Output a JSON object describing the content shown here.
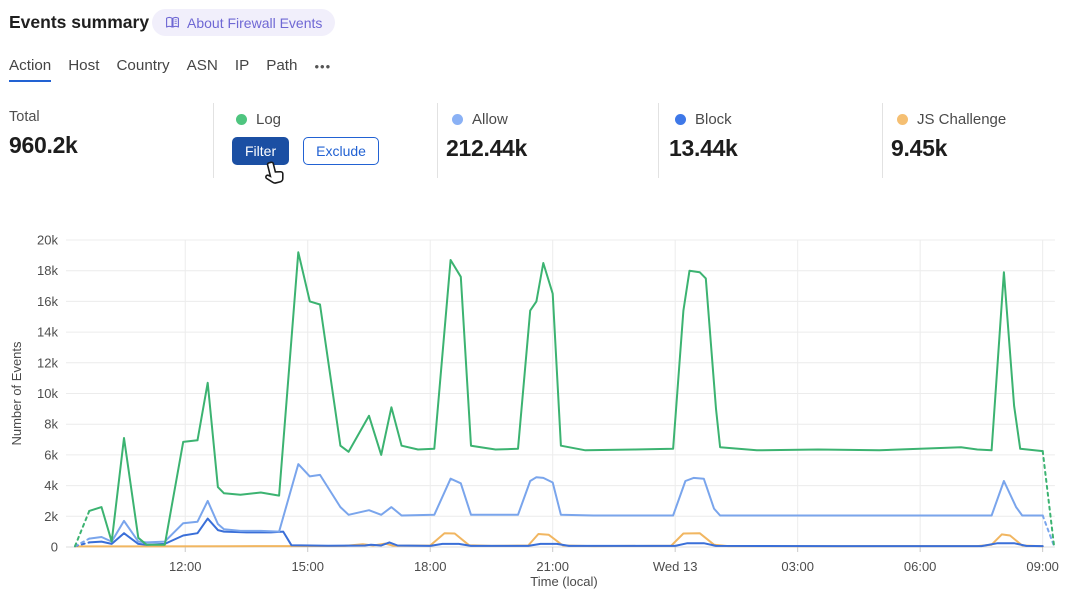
{
  "colors": {
    "accent_blue": "#2262d3",
    "filter_button_bg": "#1b4fa3",
    "badge_bg": "#f1effb",
    "badge_text": "#6f68d4"
  },
  "header": {
    "title": "Events summary",
    "about_label": "About Firewall Events"
  },
  "tabs": {
    "items": [
      {
        "label": "Action",
        "active": true
      },
      {
        "label": "Host",
        "active": false
      },
      {
        "label": "Country",
        "active": false
      },
      {
        "label": "ASN",
        "active": false
      },
      {
        "label": "IP",
        "active": false
      },
      {
        "label": "Path",
        "active": false
      }
    ],
    "more_label": "•••"
  },
  "stats": {
    "cards": [
      {
        "label": "Total",
        "value": "960.2k"
      },
      {
        "label": "Log",
        "dot_color": "#4ec57f",
        "buttons": {
          "filter": "Filter",
          "exclude": "Exclude"
        }
      },
      {
        "label": "Allow",
        "dot_color": "#8ab1f5",
        "value": "212.44k"
      },
      {
        "label": "Block",
        "dot_color": "#3e78e8",
        "value": "13.44k"
      },
      {
        "label": "JS Challenge",
        "dot_color": "#f5bf72",
        "value": "9.45k"
      }
    ]
  },
  "chart_data": {
    "type": "line",
    "xlabel": "Time (local)",
    "ylabel": "Number of Events",
    "x_unit": "hours since 00:00 of first day (24 = Wed 13 00:00)",
    "xlim": [
      9.3,
      33.3
    ],
    "ylim": [
      0,
      20000
    ],
    "grid": true,
    "x_ticks": [
      {
        "t": 12,
        "label": "12:00"
      },
      {
        "t": 15,
        "label": "15:00"
      },
      {
        "t": 18,
        "label": "18:00"
      },
      {
        "t": 21,
        "label": "21:00"
      },
      {
        "t": 24,
        "label": "Wed 13"
      },
      {
        "t": 27,
        "label": "03:00"
      },
      {
        "t": 30,
        "label": "06:00"
      },
      {
        "t": 33,
        "label": "09:00"
      }
    ],
    "y_ticks": [
      {
        "v": 0,
        "label": "0"
      },
      {
        "v": 2000,
        "label": "2k"
      },
      {
        "v": 4000,
        "label": "4k"
      },
      {
        "v": 6000,
        "label": "6k"
      },
      {
        "v": 8000,
        "label": "8k"
      },
      {
        "v": 10000,
        "label": "10k"
      },
      {
        "v": 12000,
        "label": "12k"
      },
      {
        "v": 14000,
        "label": "14k"
      },
      {
        "v": 16000,
        "label": "16k"
      },
      {
        "v": 18000,
        "label": "18k"
      },
      {
        "v": 20000,
        "label": "20k"
      }
    ],
    "series": [
      {
        "name": "Log",
        "color": "#3cb371",
        "dash_start": true,
        "dash_end": true,
        "points": [
          [
            9.3,
            50
          ],
          [
            9.65,
            2350
          ],
          [
            9.95,
            2600
          ],
          [
            10.2,
            350
          ],
          [
            10.5,
            7100
          ],
          [
            10.85,
            600
          ],
          [
            11.05,
            150
          ],
          [
            11.5,
            150
          ],
          [
            11.95,
            6850
          ],
          [
            12.3,
            6950
          ],
          [
            12.55,
            10700
          ],
          [
            12.8,
            3900
          ],
          [
            12.95,
            3500
          ],
          [
            13.35,
            3400
          ],
          [
            13.85,
            3550
          ],
          [
            14.3,
            3350
          ],
          [
            14.77,
            19200
          ],
          [
            15.05,
            16000
          ],
          [
            15.3,
            15800
          ],
          [
            15.8,
            6600
          ],
          [
            16.0,
            6200
          ],
          [
            16.5,
            8550
          ],
          [
            16.8,
            6000
          ],
          [
            17.05,
            9100
          ],
          [
            17.3,
            6600
          ],
          [
            17.7,
            6350
          ],
          [
            18.1,
            6400
          ],
          [
            18.5,
            18700
          ],
          [
            18.75,
            17600
          ],
          [
            19.0,
            6600
          ],
          [
            19.6,
            6350
          ],
          [
            20.15,
            6400
          ],
          [
            20.45,
            15400
          ],
          [
            20.6,
            16000
          ],
          [
            20.77,
            18500
          ],
          [
            21.0,
            16500
          ],
          [
            21.2,
            6600
          ],
          [
            21.8,
            6300
          ],
          [
            23.0,
            6350
          ],
          [
            23.95,
            6400
          ],
          [
            24.2,
            15400
          ],
          [
            24.35,
            18000
          ],
          [
            24.6,
            17900
          ],
          [
            24.75,
            17500
          ],
          [
            25.0,
            9000
          ],
          [
            25.1,
            6500
          ],
          [
            26.0,
            6300
          ],
          [
            27.5,
            6350
          ],
          [
            29.0,
            6300
          ],
          [
            30.5,
            6450
          ],
          [
            31.0,
            6500
          ],
          [
            31.4,
            6350
          ],
          [
            31.75,
            6300
          ],
          [
            32.05,
            17900
          ],
          [
            32.3,
            9200
          ],
          [
            32.45,
            6400
          ],
          [
            33.0,
            6250
          ],
          [
            33.28,
            50
          ]
        ]
      },
      {
        "name": "Allow",
        "color": "#7aa5ec",
        "dash_start": true,
        "dash_end": true,
        "points": [
          [
            9.3,
            50
          ],
          [
            9.65,
            550
          ],
          [
            9.95,
            650
          ],
          [
            10.2,
            350
          ],
          [
            10.5,
            1700
          ],
          [
            10.85,
            350
          ],
          [
            11.05,
            300
          ],
          [
            11.5,
            350
          ],
          [
            11.95,
            1550
          ],
          [
            12.3,
            1650
          ],
          [
            12.55,
            3000
          ],
          [
            12.8,
            1500
          ],
          [
            12.95,
            1150
          ],
          [
            13.35,
            1050
          ],
          [
            13.85,
            1050
          ],
          [
            14.3,
            1000
          ],
          [
            14.77,
            5400
          ],
          [
            15.05,
            4600
          ],
          [
            15.3,
            4700
          ],
          [
            15.8,
            2600
          ],
          [
            16.0,
            2100
          ],
          [
            16.5,
            2400
          ],
          [
            16.8,
            2100
          ],
          [
            17.05,
            2600
          ],
          [
            17.3,
            2050
          ],
          [
            18.1,
            2100
          ],
          [
            18.5,
            4450
          ],
          [
            18.75,
            4150
          ],
          [
            19.0,
            2100
          ],
          [
            20.15,
            2100
          ],
          [
            20.45,
            4300
          ],
          [
            20.6,
            4550
          ],
          [
            20.77,
            4500
          ],
          [
            21.0,
            4200
          ],
          [
            21.2,
            2100
          ],
          [
            22.0,
            2050
          ],
          [
            23.95,
            2050
          ],
          [
            24.25,
            4300
          ],
          [
            24.45,
            4500
          ],
          [
            24.7,
            4450
          ],
          [
            24.95,
            2500
          ],
          [
            25.1,
            2050
          ],
          [
            27.0,
            2050
          ],
          [
            29.0,
            2050
          ],
          [
            31.0,
            2050
          ],
          [
            31.75,
            2050
          ],
          [
            32.05,
            4300
          ],
          [
            32.35,
            2600
          ],
          [
            32.5,
            2050
          ],
          [
            33.0,
            2050
          ],
          [
            33.28,
            50
          ]
        ]
      },
      {
        "name": "Block",
        "color": "#3a6fd8",
        "dash_start": true,
        "dash_end": false,
        "points": [
          [
            9.3,
            50
          ],
          [
            9.65,
            300
          ],
          [
            9.95,
            350
          ],
          [
            10.2,
            200
          ],
          [
            10.5,
            900
          ],
          [
            10.85,
            200
          ],
          [
            11.05,
            150
          ],
          [
            11.5,
            200
          ],
          [
            11.95,
            750
          ],
          [
            12.3,
            900
          ],
          [
            12.55,
            1850
          ],
          [
            12.8,
            1100
          ],
          [
            12.95,
            1000
          ],
          [
            13.5,
            950
          ],
          [
            14.1,
            950
          ],
          [
            14.4,
            1000
          ],
          [
            14.6,
            120
          ],
          [
            15.5,
            80
          ],
          [
            16.4,
            100
          ],
          [
            16.55,
            150
          ],
          [
            16.8,
            100
          ],
          [
            17.0,
            300
          ],
          [
            17.2,
            100
          ],
          [
            18.0,
            70
          ],
          [
            18.3,
            200
          ],
          [
            18.7,
            200
          ],
          [
            19.0,
            70
          ],
          [
            20.4,
            70
          ],
          [
            20.7,
            200
          ],
          [
            21.1,
            200
          ],
          [
            21.4,
            70
          ],
          [
            24.0,
            70
          ],
          [
            24.3,
            250
          ],
          [
            24.7,
            250
          ],
          [
            25.0,
            70
          ],
          [
            28.0,
            60
          ],
          [
            31.5,
            60
          ],
          [
            31.9,
            250
          ],
          [
            32.3,
            250
          ],
          [
            32.6,
            70
          ],
          [
            33.0,
            60
          ]
        ]
      },
      {
        "name": "JS Challenge",
        "color": "#f1b661",
        "dash_start": false,
        "dash_end": false,
        "points": [
          [
            9.3,
            40
          ],
          [
            11.0,
            40
          ],
          [
            13.0,
            50
          ],
          [
            14.5,
            60
          ],
          [
            15.9,
            70
          ],
          [
            16.35,
            180
          ],
          [
            16.6,
            100
          ],
          [
            16.9,
            220
          ],
          [
            17.1,
            80
          ],
          [
            18.0,
            100
          ],
          [
            18.35,
            900
          ],
          [
            18.6,
            880
          ],
          [
            18.95,
            120
          ],
          [
            19.5,
            70
          ],
          [
            20.4,
            100
          ],
          [
            20.65,
            850
          ],
          [
            20.9,
            800
          ],
          [
            21.25,
            100
          ],
          [
            22.0,
            60
          ],
          [
            23.9,
            80
          ],
          [
            24.2,
            880
          ],
          [
            24.6,
            900
          ],
          [
            24.95,
            150
          ],
          [
            25.3,
            60
          ],
          [
            28.0,
            50
          ],
          [
            31.4,
            60
          ],
          [
            31.75,
            150
          ],
          [
            32.0,
            820
          ],
          [
            32.2,
            750
          ],
          [
            32.5,
            100
          ],
          [
            33.0,
            50
          ]
        ]
      }
    ]
  }
}
